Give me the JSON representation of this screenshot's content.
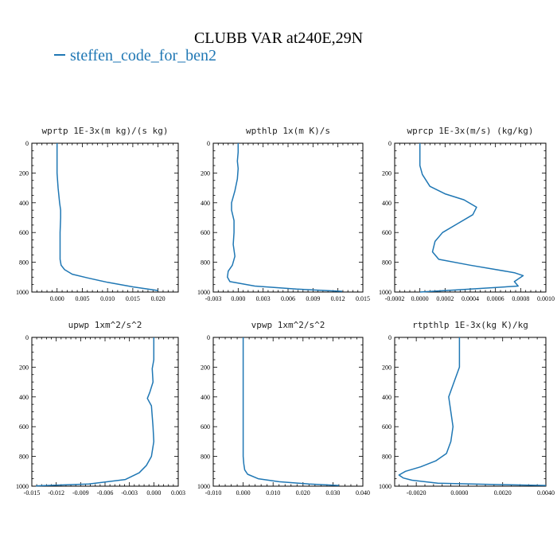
{
  "figure": {
    "title": "CLUBB VAR at240E,29N",
    "legend": [
      {
        "label": "steffen_code_for_ben2",
        "color": "#1f77b4"
      }
    ]
  },
  "chart_data": [
    {
      "type": "line",
      "title": "wprtp  1E-3x(m kg)/(s kg)",
      "ylim": [
        1000,
        0
      ],
      "xlim": [
        -0.005,
        0.024
      ],
      "xticks": [
        "0.000",
        "0.005",
        "0.010",
        "0.015",
        "0.020"
      ],
      "xtick_values": [
        0,
        0.005,
        0.01,
        0.015,
        0.02
      ],
      "yticks": [
        "0",
        "200",
        "400",
        "600",
        "800",
        "1000"
      ],
      "series": [
        {
          "color": "#1f77b4",
          "x": [
            0,
            0,
            0,
            0.0002,
            0.0005,
            0.0007,
            0.0007,
            0.0006,
            0.0006,
            0.0006,
            0.0008,
            0.0015,
            0.003,
            0.006,
            0.01,
            0.015,
            0.02
          ],
          "y": [
            0,
            100,
            200,
            300,
            400,
            450,
            500,
            600,
            700,
            780,
            820,
            850,
            880,
            905,
            935,
            965,
            990
          ]
        }
      ]
    },
    {
      "type": "line",
      "title": "wpthlp  1x(m K)/s",
      "ylim": [
        1000,
        0
      ],
      "xlim": [
        -0.003,
        0.015
      ],
      "xticks": [
        "-0.003",
        "0.000",
        "0.003",
        "0.006",
        "0.009",
        "0.012",
        "0.015"
      ],
      "xtick_values": [
        -0.003,
        0,
        0.003,
        0.006,
        0.009,
        0.012,
        0.015
      ],
      "yticks": [
        "0",
        "200",
        "400",
        "600",
        "800",
        "1000"
      ],
      "series": [
        {
          "color": "#1f77b4",
          "x": [
            0,
            0,
            -0.0001,
            0,
            -0.0001,
            -0.0004,
            -0.0008,
            -0.0008,
            -0.0005,
            -0.0005,
            -0.0006,
            -0.0004,
            -0.0007,
            -0.0012,
            -0.0013,
            -0.001,
            0.002,
            0.007,
            0.0125
          ],
          "y": [
            0,
            60,
            120,
            170,
            240,
            320,
            400,
            450,
            520,
            600,
            680,
            760,
            820,
            860,
            900,
            930,
            960,
            980,
            995
          ]
        }
      ]
    },
    {
      "type": "line",
      "title": "wprcp  1E-3x(m/s) (kg/kg)",
      "ylim": [
        1000,
        0
      ],
      "xlim": [
        -0.0002,
        0.001
      ],
      "xticks": [
        "-0.0002",
        "0.0000",
        "0.0002",
        "0.0004",
        "0.0006",
        "0.0008",
        "0.0010"
      ],
      "xtick_values": [
        -0.0002,
        0,
        0.0002,
        0.0004,
        0.0006,
        0.0008,
        0.001
      ],
      "yticks": [
        "0",
        "200",
        "400",
        "600",
        "800",
        "1000"
      ],
      "series": [
        {
          "color": "#1f77b4",
          "x": [
            0,
            0,
            2e-05,
            8e-05,
            0.0002,
            0.00035,
            0.00045,
            0.00042,
            0.0003,
            0.00018,
            0.00012,
            0.0001,
            0.00015,
            0.0004,
            0.00075,
            0.00082,
            0.00075,
            0.00078,
            0.0003,
            0
          ],
          "y": [
            0,
            150,
            210,
            290,
            340,
            380,
            430,
            480,
            540,
            600,
            660,
            730,
            780,
            820,
            870,
            890,
            930,
            960,
            985,
            1000
          ]
        }
      ]
    },
    {
      "type": "line",
      "title": "upwp  1xm^2/s^2",
      "ylim": [
        1000,
        0
      ],
      "xlim": [
        -0.015,
        0.003
      ],
      "xticks": [
        "-0.015",
        "-0.012",
        "-0.009",
        "-0.006",
        "-0.003",
        "0.000",
        "0.003"
      ],
      "xtick_values": [
        -0.015,
        -0.012,
        -0.009,
        -0.006,
        -0.003,
        0,
        0.003
      ],
      "yticks": [
        "0",
        "200",
        "400",
        "600",
        "800",
        "1000"
      ],
      "series": [
        {
          "color": "#1f77b4",
          "x": [
            0,
            0,
            -0.0002,
            -0.0001,
            -0.0005,
            -0.0008,
            -0.0003,
            -0.0001,
            0,
            -0.0003,
            -0.0009,
            -0.0018,
            -0.0035,
            -0.008,
            -0.0145
          ],
          "y": [
            0,
            150,
            210,
            300,
            370,
            410,
            460,
            600,
            700,
            800,
            860,
            910,
            955,
            985,
            998
          ]
        }
      ]
    },
    {
      "type": "line",
      "title": "vpwp  1xm^2/s^2",
      "ylim": [
        1000,
        0
      ],
      "xlim": [
        -0.01,
        0.04
      ],
      "xticks": [
        "-0.010",
        "0.000",
        "0.010",
        "0.020",
        "0.030",
        "0.040"
      ],
      "xtick_values": [
        -0.01,
        0,
        0.01,
        0.02,
        0.03,
        0.04
      ],
      "yticks": [
        "0",
        "200",
        "400",
        "600",
        "800",
        "1000"
      ],
      "series": [
        {
          "color": "#1f77b4",
          "x": [
            0,
            0,
            0,
            0,
            0,
            0.0002,
            0.0005,
            0.0015,
            0.005,
            0.012,
            0.022,
            0.032
          ],
          "y": [
            0,
            200,
            400,
            600,
            800,
            850,
            890,
            920,
            950,
            970,
            985,
            995
          ]
        }
      ]
    },
    {
      "type": "line",
      "title": "rtpthlp  1E-3x(kg K)/kg",
      "ylim": [
        1000,
        0
      ],
      "xlim": [
        -0.003,
        0.004
      ],
      "xticks": [
        "-0.0020",
        "0.0000",
        "0.0020",
        "0.0040"
      ],
      "xtick_values": [
        -0.002,
        0,
        0.002,
        0.004
      ],
      "yticks": [
        "0",
        "200",
        "400",
        "600",
        "800",
        "1000"
      ],
      "series": [
        {
          "color": "#1f77b4",
          "x": [
            0,
            0,
            -0.0003,
            -0.0005,
            -0.0004,
            -0.0003,
            -0.0004,
            -0.0006,
            -0.0011,
            -0.0018,
            -0.0025,
            -0.0028,
            -0.0026,
            -0.0022,
            -0.001,
            0.002,
            0.004
          ],
          "y": [
            0,
            200,
            320,
            400,
            500,
            600,
            700,
            780,
            830,
            870,
            900,
            925,
            945,
            960,
            980,
            990,
            995
          ]
        }
      ]
    }
  ]
}
